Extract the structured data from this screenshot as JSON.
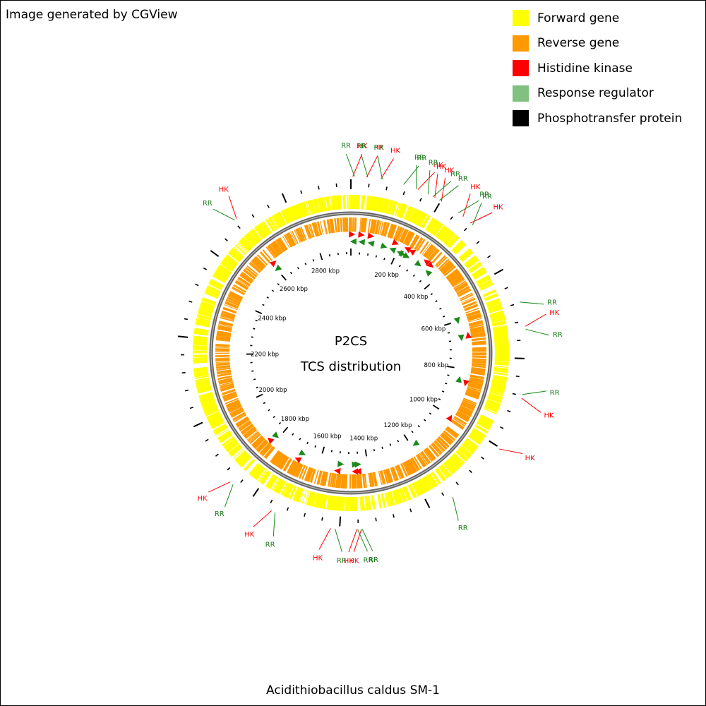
{
  "credit": "Image generated by CGView",
  "legend": [
    {
      "label": "Forward gene",
      "color": "#ffff00"
    },
    {
      "label": "Reverse gene",
      "color": "#ff9900"
    },
    {
      "label": "Histidine kinase",
      "color": "#ff0000"
    },
    {
      "label": "Response regulator",
      "color": "#80c080"
    },
    {
      "label": "Phosphotransfer protein",
      "color": "#000000"
    }
  ],
  "center": {
    "line1": "P2CS",
    "line2": "TCS distribution"
  },
  "genome_name": "Acidithiobacillus caldus SM-1",
  "genome_length_kbp": 2940,
  "ruler": {
    "labels": [
      "200 kbp",
      "400 kbp",
      "600 kbp",
      "800 kbp",
      "1000 kbp",
      "1200 kbp",
      "1400 kbp",
      "1600 kbp",
      "1800 kbp",
      "2000 kbp",
      "2200 kbp",
      "2400 kbp",
      "2600 kbp",
      "2800 kbp"
    ],
    "label_positions_kbp": [
      200,
      400,
      600,
      800,
      1000,
      1200,
      1400,
      1600,
      1800,
      2000,
      2200,
      2400,
      2600,
      2800
    ]
  },
  "colors": {
    "forward": "#ffff00",
    "reverse": "#ff9900",
    "hk": "#ff0000",
    "rr_mark": "#1a8a1a",
    "rr_text": "#1a7a1a",
    "backbone_outer": "#666666",
    "backbone_inner": "#aaaaaa"
  },
  "tcs_features": [
    {
      "type": "HK",
      "kbp": 5,
      "label": "HK"
    },
    {
      "type": "RR",
      "kbp": 10,
      "label": "RR"
    },
    {
      "type": "HK",
      "kbp": 42,
      "label": "HK"
    },
    {
      "type": "RR",
      "kbp": 45,
      "label": "RR"
    },
    {
      "type": "HK",
      "kbp": 80,
      "label": "HK"
    },
    {
      "type": "RR",
      "kbp": 84,
      "label": "RR"
    },
    {
      "type": "RR",
      "kbp": 142,
      "label": "RR"
    },
    {
      "type": "RR",
      "kbp": 178,
      "label": "RR"
    },
    {
      "type": "HK",
      "kbp": 182,
      "label": "HK"
    },
    {
      "type": "RR",
      "kbp": 212,
      "label": "RR"
    },
    {
      "type": "RR",
      "kbp": 226,
      "label": "RR"
    },
    {
      "type": "HK",
      "kbp": 232,
      "label": "HK"
    },
    {
      "type": "RR",
      "kbp": 246,
      "label": "RR"
    },
    {
      "type": "HK",
      "kbp": 252,
      "label": "HK"
    },
    {
      "type": "RR",
      "kbp": 306,
      "label": "RR"
    },
    {
      "type": "HK",
      "kbp": 322,
      "label": "HK"
    },
    {
      "type": "HK",
      "kbp": 348,
      "label": "HK"
    },
    {
      "type": "RR",
      "kbp": 356,
      "label": "RR"
    },
    {
      "type": "RR",
      "kbp": 598,
      "label": "RR"
    },
    {
      "type": "HK",
      "kbp": 664,
      "label": "HK"
    },
    {
      "type": "RR",
      "kbp": 672,
      "label": "RR"
    },
    {
      "type": "RR",
      "kbp": 846,
      "label": "RR"
    },
    {
      "type": "HK",
      "kbp": 856,
      "label": "HK"
    },
    {
      "type": "HK",
      "kbp": 1004,
      "label": "HK"
    },
    {
      "type": "RR",
      "kbp": 1182,
      "label": "RR"
    },
    {
      "type": "RR",
      "kbp": 1440,
      "label": "RR"
    },
    {
      "type": "HK",
      "kbp": 1442,
      "label": "HK"
    },
    {
      "type": "RR",
      "kbp": 1452,
      "label": "RR"
    },
    {
      "type": "HK",
      "kbp": 1454,
      "label": "HK"
    },
    {
      "type": "RR",
      "kbp": 1512,
      "label": "RR"
    },
    {
      "type": "HK",
      "kbp": 1524,
      "label": "HK"
    },
    {
      "type": "RR",
      "kbp": 1678,
      "label": "RR"
    },
    {
      "type": "HK",
      "kbp": 1688,
      "label": "HK"
    },
    {
      "type": "RR",
      "kbp": 1812,
      "label": "RR"
    },
    {
      "type": "HK",
      "kbp": 1822,
      "label": "HK"
    },
    {
      "type": "RR",
      "kbp": 2604,
      "label": "RR"
    },
    {
      "type": "HK",
      "kbp": 2610,
      "label": "HK"
    }
  ]
}
